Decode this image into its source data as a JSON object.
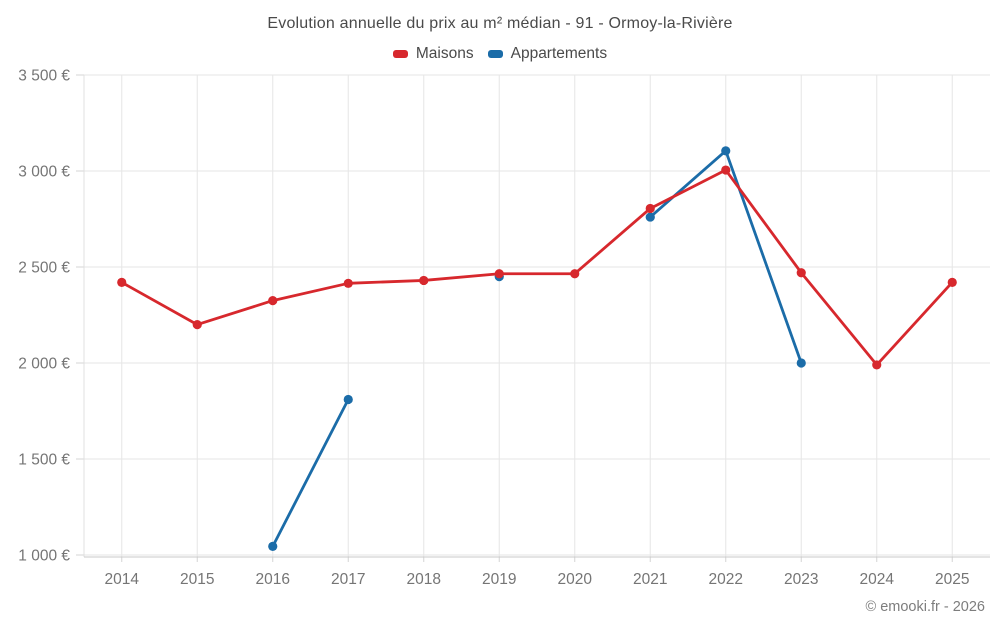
{
  "header": {
    "title": "Evolution annuelle du prix au m² médian - 91 - Ormoy-la-Rivière"
  },
  "legend": {
    "items": [
      {
        "label": "Maisons",
        "color": "#d7282d"
      },
      {
        "label": "Appartements",
        "color": "#1b6ca8"
      }
    ]
  },
  "footer": {
    "copyright": "© emooki.fr - 2026"
  },
  "colors": {
    "maisons": "#d7282d",
    "appartements": "#1b6ca8",
    "grid": "#e6e6e6",
    "axis_bottom": "#c9c9c9",
    "axis_left": "#e0e0e0",
    "tick": "#d4d4d4",
    "axis_label": "#757575",
    "title_text": "#4a4a4a"
  },
  "chart_data": {
    "type": "line",
    "title": "Evolution annuelle du prix au m² médian - 91 - Ormoy-la-Rivière",
    "categories": [
      "2014",
      "2015",
      "2016",
      "2017",
      "2018",
      "2019",
      "2020",
      "2021",
      "2022",
      "2023",
      "2024",
      "2025"
    ],
    "series": [
      {
        "name": "Maisons",
        "color": "#d7282d",
        "values": [
          2420,
          2200,
          2325,
          2415,
          2430,
          2465,
          2465,
          2805,
          3005,
          2470,
          1990,
          2420
        ]
      },
      {
        "name": "Appartements",
        "color": "#1b6ca8",
        "values": [
          null,
          null,
          1045,
          1810,
          null,
          2450,
          null,
          2760,
          3105,
          2000,
          null,
          null
        ]
      }
    ],
    "xlabel": "",
    "ylabel": "",
    "ylim": [
      1000,
      3500
    ],
    "yticks": {
      "values": [
        1000,
        1500,
        2000,
        2500,
        3000,
        3500
      ],
      "labels": [
        "1 000 €",
        "1 500 €",
        "2 000 €",
        "2 500 €",
        "3 000 €",
        "3 500 €"
      ]
    },
    "grid": true,
    "legend_position": "top",
    "marker": "circle"
  }
}
